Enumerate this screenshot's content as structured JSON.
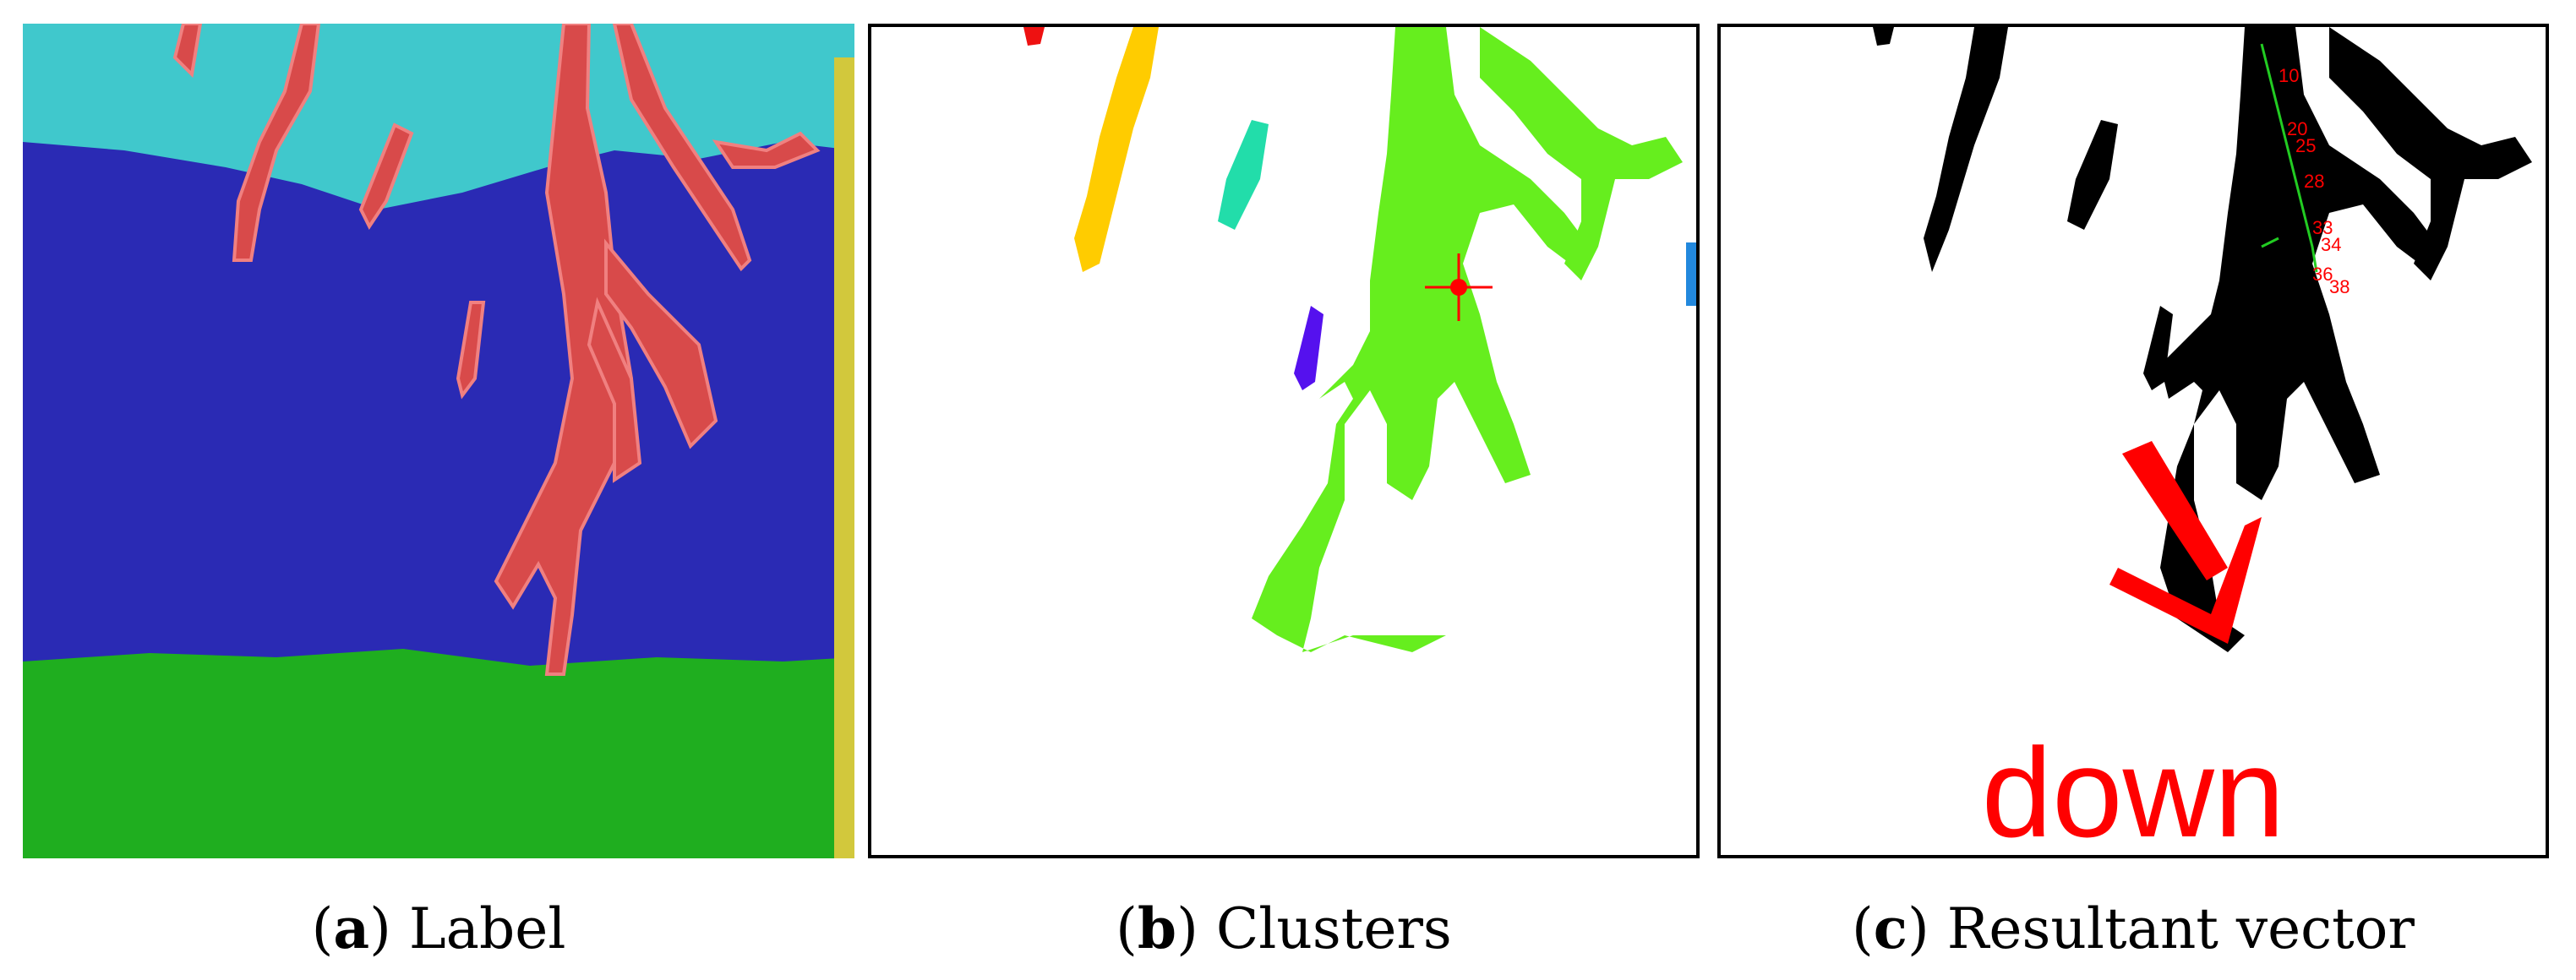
{
  "figure": {
    "panels": [
      {
        "id": "a",
        "letter": "a",
        "caption": "Label",
        "colors": {
          "sky": "#40c8cc",
          "cloud": "#2a2ab4",
          "ground": "#1fae1f",
          "lightning": "#d84a4a",
          "edge": "#d2c83c"
        }
      },
      {
        "id": "b",
        "letter": "b",
        "caption": "Clusters",
        "colors": {
          "main_cluster": "#66ee1e",
          "yellow_cluster": "#ffcc00",
          "teal_cluster": "#22ddaa",
          "purple_cluster": "#5511ee",
          "red_cluster": "#ee1111",
          "blue_cluster": "#2288dd",
          "center_marker": "#ff0000"
        }
      },
      {
        "id": "c",
        "letter": "c",
        "caption": "Resultant vector",
        "direction_text": "down",
        "track_labels": [
          "10",
          "20",
          "25",
          "28",
          "33",
          "34",
          "36",
          "38"
        ],
        "colors": {
          "shape": "#000000",
          "arrow": "#ff0000",
          "track": "#22cc22"
        }
      }
    ]
  }
}
